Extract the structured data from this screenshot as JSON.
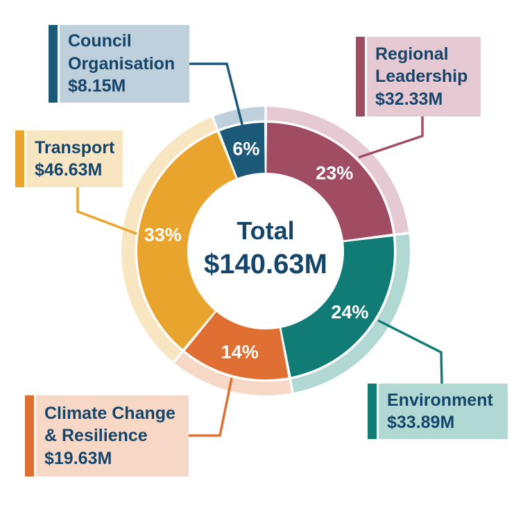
{
  "chart_data": {
    "type": "pie",
    "subtype": "donut",
    "legend_position": "callouts",
    "total_label": "Total",
    "total_value": "$140.63M",
    "start_angle_deg": 0,
    "direction": "clockwise",
    "categories": [
      "Regional Leadership",
      "Environment",
      "Climate Change & Resilience",
      "Transport",
      "Council Organisation"
    ],
    "values": [
      23,
      24,
      14,
      33,
      6
    ],
    "amounts": [
      "$32.33M",
      "$33.89M",
      "$19.63M",
      "$46.63M",
      "$8.15M"
    ],
    "segments": [
      {
        "id": "regional-leadership",
        "label_lines": [
          "Regional",
          "Leadership"
        ],
        "amount": "$32.33M",
        "percent": 23,
        "percent_label": "23%",
        "color": "#A04D64",
        "light_color": "#E5C9D3"
      },
      {
        "id": "environment",
        "label_lines": [
          "Environment"
        ],
        "amount": "$33.89M",
        "percent": 24,
        "percent_label": "24%",
        "color": "#117C76",
        "light_color": "#B2D8D4"
      },
      {
        "id": "climate-change-resilience",
        "label_lines": [
          "Climate Change",
          "& Resilience"
        ],
        "amount": "$19.63M",
        "percent": 14,
        "percent_label": "14%",
        "color": "#E06F33",
        "light_color": "#F7D8C6"
      },
      {
        "id": "transport",
        "label_lines": [
          "Transport"
        ],
        "amount": "$46.63M",
        "percent": 33,
        "percent_label": "33%",
        "color": "#E9A42D",
        "light_color": "#F8E5C2"
      },
      {
        "id": "council-organisation",
        "label_lines": [
          "Council",
          "Organisation"
        ],
        "amount": "$8.15M",
        "percent": 6,
        "percent_label": "6%",
        "color": "#1C5877",
        "light_color": "#BDD0DB"
      }
    ],
    "colors": {
      "text_navy": "#16456A",
      "background": "#FFFFFF",
      "percent_text": "#FFFFFF"
    }
  }
}
